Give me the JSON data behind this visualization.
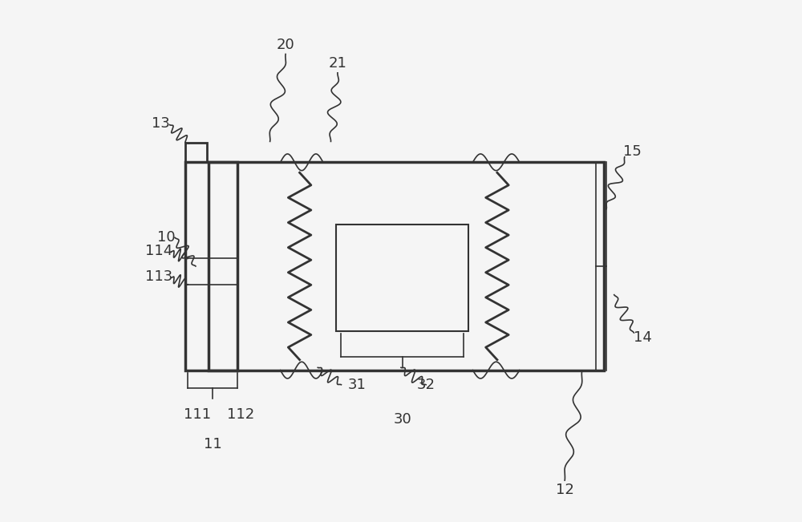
{
  "bg_color": "#f5f5f5",
  "line_color": "#333333",
  "lw": 2.0,
  "thin_lw": 1.2,
  "fs": 13
}
